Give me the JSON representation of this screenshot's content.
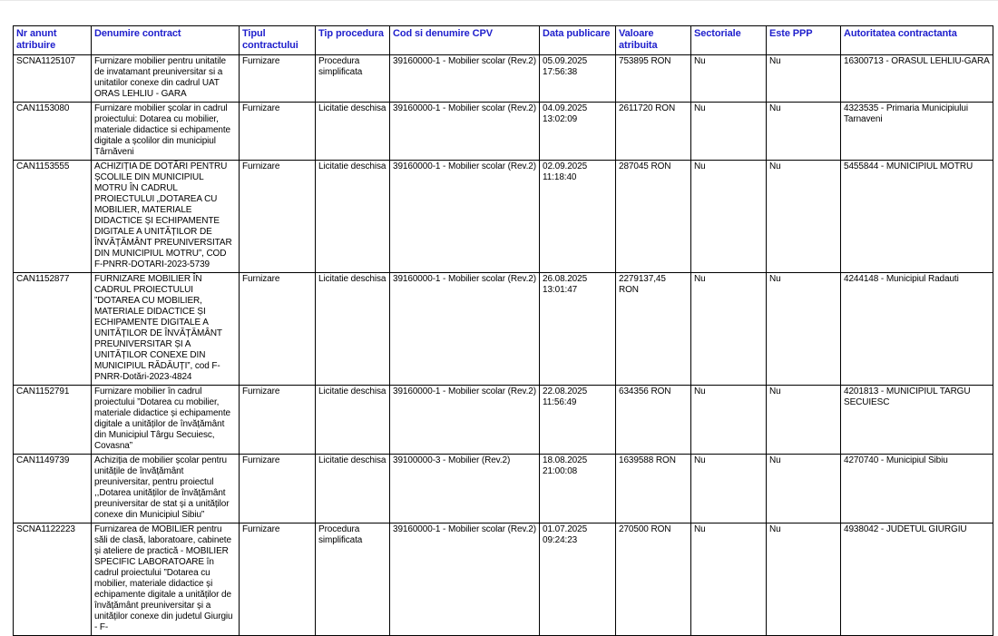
{
  "page": {
    "background_color": "#ffffff",
    "header_text_color": "#1f1fcc",
    "border_color": "#000000"
  },
  "table": {
    "columns": [
      {
        "key": "nr_anunt",
        "label": "Nr anunt atribuire"
      },
      {
        "key": "denumire",
        "label": "Denumire contract"
      },
      {
        "key": "tip_contract",
        "label": "Tipul contractului"
      },
      {
        "key": "tip_procedura",
        "label": "Tip procedura"
      },
      {
        "key": "cpv",
        "label": "Cod si denumire CPV"
      },
      {
        "key": "data_publicare",
        "label": "Data publicare"
      },
      {
        "key": "valoare",
        "label": "Valoare atribuita"
      },
      {
        "key": "sectoriale",
        "label": "Sectoriale"
      },
      {
        "key": "este_ppp",
        "label": "Este PPP"
      },
      {
        "key": "autoritate",
        "label": "Autoritatea contractanta"
      }
    ],
    "rows": [
      {
        "nr_anunt": "SCNA1125107",
        "denumire": "Furnizare mobilier pentru unitatile de invatamant preuniversitar si a unitatilor conexe din cadrul UAT ORAS LEHLIU - GARA",
        "tip_contract": "Furnizare",
        "tip_procedura": "Procedura simplificata",
        "cpv": "39160000-1 - Mobilier scolar (Rev.2)",
        "data_publicare": "05.09.2025 17:56:38",
        "valoare": "753895 RON",
        "sectoriale": "Nu",
        "este_ppp": "Nu",
        "autoritate": "16300713 - ORASUL LEHLIU-GARA"
      },
      {
        "nr_anunt": "CAN1153080",
        "denumire": "Furnizare mobilier școlar in cadrul proiectului: Dotarea cu mobilier, materiale didactice si echipamente digitale a școlilor din municipiul Târnăveni",
        "tip_contract": "Furnizare",
        "tip_procedura": "Licitatie deschisa",
        "cpv": "39160000-1 - Mobilier scolar (Rev.2)",
        "data_publicare": "04.09.2025 13:02:09",
        "valoare": "2611720 RON",
        "sectoriale": "Nu",
        "este_ppp": "Nu",
        "autoritate": "4323535 - Primaria Municipiului Tarnaveni"
      },
      {
        "nr_anunt": "CAN1153555",
        "denumire": "ACHIZIȚIA DE DOTĂRI PENTRU ȘCOLILE DIN MUNICIPIUL MOTRU ÎN CADRUL PROIECTULUI „DOTAREA CU MOBILIER, MATERIALE DIDACTICE ȘI ECHIPAMENTE DIGITALE A UNITĂȚILOR DE ÎNVĂȚĂMÂNT PREUNIVERSITAR DIN MUNICIPIUL MOTRU”, COD F-PNRR-DOTARI-2023-5739",
        "tip_contract": "Furnizare",
        "tip_procedura": "Licitatie deschisa",
        "cpv": "39160000-1 - Mobilier scolar (Rev.2)",
        "data_publicare": "02.09.2025 11:18:40",
        "valoare": "287045 RON",
        "sectoriale": "Nu",
        "este_ppp": "Nu",
        "autoritate": "5455844 - MUNICIPIUL MOTRU"
      },
      {
        "nr_anunt": "CAN1152877",
        "denumire": "FURNIZARE MOBILIER ÎN CADRUL PROIECTULUI ”DOTAREA CU MOBILIER, MATERIALE DIDACTICE ȘI ECHIPAMENTE DIGITALE A UNITĂȚILOR DE ÎNVĂȚĂMÂNT PREUNIVERSITAR ȘI A UNITĂȚILOR CONEXE DIN MUNICIPIUL RĂDĂUȚI”, cod F-PNRR-Dotări-2023-4824",
        "tip_contract": "Furnizare",
        "tip_procedura": "Licitatie deschisa",
        "cpv": "39160000-1 - Mobilier scolar (Rev.2)",
        "data_publicare": "26.08.2025 13:01:47",
        "valoare": "2279137,45 RON",
        "sectoriale": "Nu",
        "este_ppp": "Nu",
        "autoritate": "4244148 - Municipiul Radauti"
      },
      {
        "nr_anunt": "CAN1152791",
        "denumire": "Furnizare mobilier în cadrul proiectului ”Dotarea cu mobilier, materiale didactice și echipamente digitale a unităților de învățământ din Municipiul Târgu Secuiesc, Covasna”",
        "tip_contract": "Furnizare",
        "tip_procedura": "Licitatie deschisa",
        "cpv": "39160000-1 - Mobilier scolar (Rev.2)",
        "data_publicare": "22.08.2025 11:56:49",
        "valoare": "634356 RON",
        "sectoriale": "Nu",
        "este_ppp": "Nu",
        "autoritate": "4201813 - MUNICIPIUL TARGU SECUIESC"
      },
      {
        "nr_anunt": "CAN1149739",
        "denumire": "Achiziția de mobilier școlar pentru unitățile de învățământ preuniversitar, pentru proiectul ,,Dotarea unităților de învățământ preuniversitar de stat și a unităților conexe din Municipiul Sibiu”",
        "tip_contract": "Furnizare",
        "tip_procedura": "Licitatie deschisa",
        "cpv": "39100000-3 - Mobilier (Rev.2)",
        "data_publicare": "18.08.2025 21:00:08",
        "valoare": "1639588 RON",
        "sectoriale": "Nu",
        "este_ppp": "Nu",
        "autoritate": "4270740 - Municipiul Sibiu"
      },
      {
        "nr_anunt": "SCNA1122223",
        "denumire": "Furnizarea de MOBILIER pentru săli de clasă, laboratoare, cabinete și ateliere de practică - MOBILIER SPECIFIC LABORATOARE în cadrul proiectului ”Dotarea cu mobilier, materiale didactice și echipamente digitale a unităților de învățământ preuniversitar și a unităților conexe din judetul Giurgiu - F-",
        "tip_contract": "Furnizare",
        "tip_procedura": "Procedura simplificata",
        "cpv": "39160000-1 - Mobilier scolar (Rev.2)",
        "data_publicare": "01.07.2025 09:24:23",
        "valoare": "270500 RON",
        "sectoriale": "Nu",
        "este_ppp": "Nu",
        "autoritate": "4938042 - JUDETUL GIURGIU"
      }
    ]
  }
}
